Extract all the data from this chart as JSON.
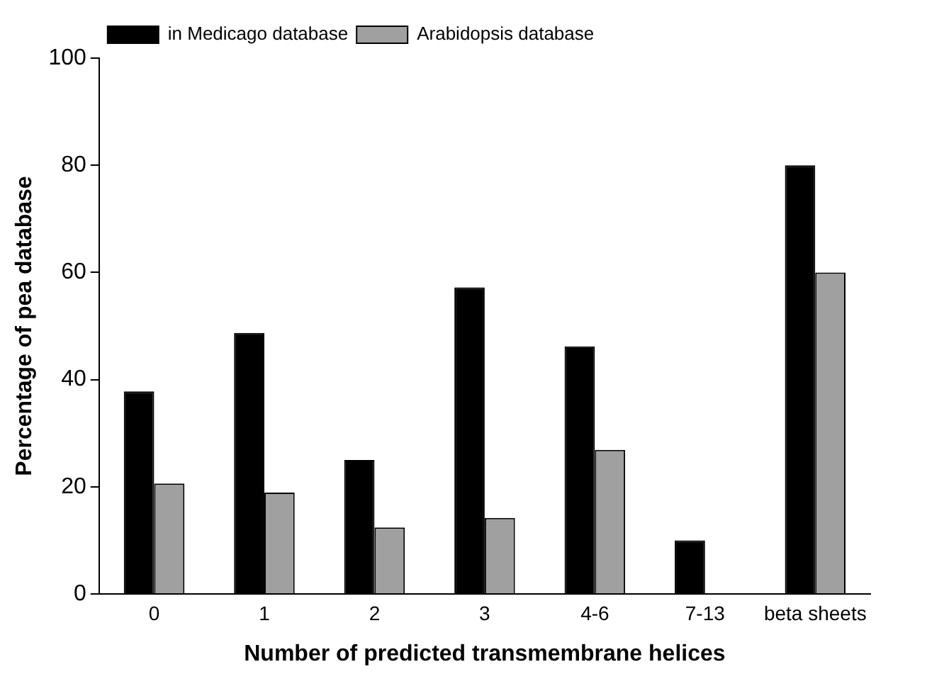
{
  "chart_data": {
    "type": "bar",
    "xlabel": "Number of predicted transmembrane helices",
    "ylabel": "Percentage of pea database",
    "categories": [
      "0",
      "1",
      "2",
      "3",
      "4-6",
      "7-13",
      "beta sheets"
    ],
    "series": [
      {
        "name": "in Medicago database",
        "color": "#000000",
        "values": [
          37.8,
          48.7,
          25,
          57.2,
          46.2,
          10,
          80
        ]
      },
      {
        "name": "Arabidopsis database",
        "color": "#a0a0a0",
        "values": [
          20.6,
          18.9,
          12.4,
          14.2,
          26.9,
          0,
          60
        ]
      }
    ],
    "ylim": [
      0,
      100
    ],
    "yticks": [
      0,
      20,
      40,
      60,
      80,
      100
    ],
    "grid": false,
    "legend": "top left"
  }
}
